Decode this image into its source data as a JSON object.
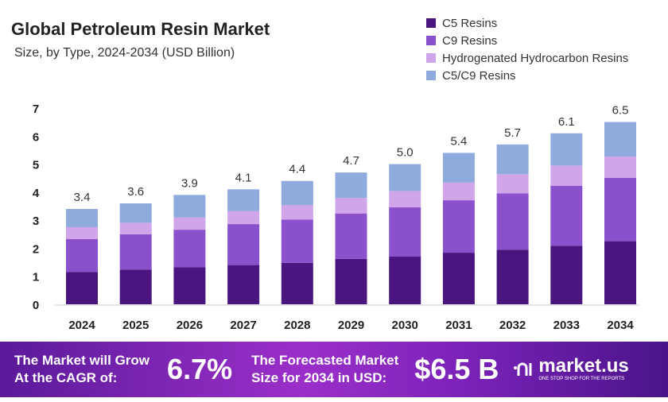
{
  "chart_data": {
    "type": "bar",
    "stacked": true,
    "title": "Global Petroleum Resin Market",
    "subtitle": "Size, by Type, 2024-2034 (USD Billion)",
    "categories": [
      "2024",
      "2025",
      "2026",
      "2027",
      "2028",
      "2029",
      "2030",
      "2031",
      "2032",
      "2033",
      "2034"
    ],
    "series": [
      {
        "name": "C5 Resins",
        "color": "#4b1580",
        "values": [
          1.15,
          1.24,
          1.32,
          1.4,
          1.48,
          1.62,
          1.7,
          1.84,
          1.95,
          2.09,
          2.25
        ]
      },
      {
        "name": "C9 Resins",
        "color": "#8b50cc",
        "values": [
          1.18,
          1.26,
          1.34,
          1.46,
          1.54,
          1.62,
          1.76,
          1.87,
          2.01,
          2.14,
          2.26
        ]
      },
      {
        "name": "Hydrogenated Hydrocarbon Resins",
        "color": "#d1a5ea",
        "values": [
          0.42,
          0.41,
          0.44,
          0.46,
          0.52,
          0.55,
          0.58,
          0.63,
          0.68,
          0.72,
          0.76
        ]
      },
      {
        "name": "C5/C9 Resins",
        "color": "#8faadc",
        "values": [
          0.65,
          0.69,
          0.8,
          0.78,
          0.86,
          0.91,
          0.96,
          1.06,
          1.06,
          1.15,
          1.23
        ]
      }
    ],
    "totals": [
      "3.4",
      "3.6",
      "3.9",
      "4.1",
      "4.4",
      "4.7",
      "5.0",
      "5.4",
      "5.7",
      "6.1",
      "6.5"
    ],
    "yticks": [
      "0",
      "1",
      "2",
      "3",
      "4",
      "5",
      "6",
      "7"
    ],
    "ylim": [
      0,
      7
    ],
    "grid": false,
    "legend": "top-right"
  },
  "footer": {
    "cagr_label_1": "The Market will Grow",
    "cagr_label_2": "At the CAGR of:",
    "cagr_value": "6.7%",
    "size_label_1": "The Forecasted Market",
    "size_label_2": "Size for 2034 in USD:",
    "size_value": "$6.5 B",
    "logo_name": "market.us",
    "logo_tagline": "ONE STOP SHOP FOR THE REPORTS"
  }
}
